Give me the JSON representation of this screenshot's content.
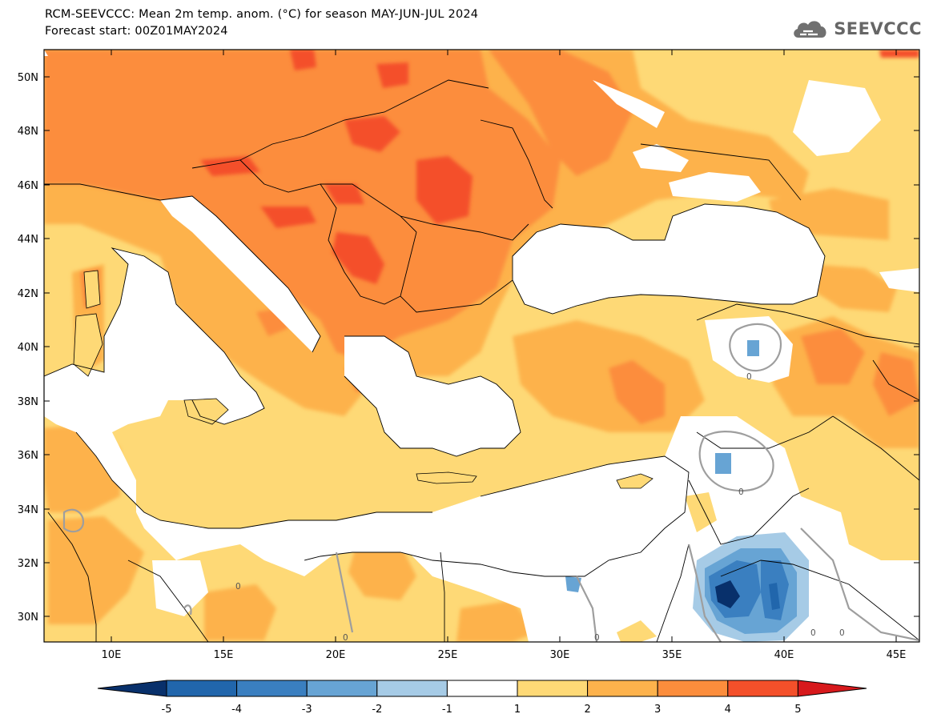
{
  "header": {
    "title_line1": "RCM-SEEVCCC: Mean 2m temp. anom. (°C) for season MAY-JUN-JUL 2024",
    "title_line2": "Forecast start: 00Z01MAY2024"
  },
  "logo": {
    "text": "SEEVCCC",
    "icon": "cloud-logo-icon"
  },
  "map": {
    "lon_labels": [
      "10E",
      "15E",
      "20E",
      "25E",
      "30E",
      "35E",
      "40E",
      "45E"
    ],
    "lat_labels": [
      "50N",
      "48N",
      "46N",
      "44N",
      "42N",
      "40N",
      "38N",
      "36N",
      "34N",
      "32N",
      "30N"
    ],
    "contour_labels": [
      "0",
      "0",
      "0",
      "0",
      "0",
      "0",
      "0"
    ]
  },
  "legend": {
    "ticks": [
      "-5",
      "-4",
      "-3",
      "-2",
      "-1",
      "1",
      "2",
      "3",
      "4",
      "5"
    ],
    "colors": {
      "lt_-5": "#08306b",
      "-5_-4": "#2166ac",
      "-4_-3": "#3a7fc0",
      "-3_-2": "#67a4d4",
      "-2_-1": "#a6cbe6",
      "-1_1": "#ffffff",
      "1_2": "#fed976",
      "2_3": "#fdb24c",
      "3_4": "#fc8d3c",
      "4_5": "#f4502a",
      "gt_5": "#d7191c"
    }
  }
}
